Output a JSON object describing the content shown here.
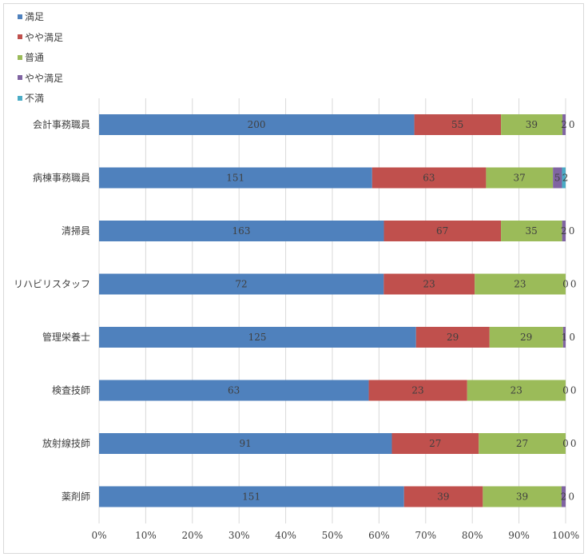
{
  "chart_data": {
    "type": "bar",
    "orientation": "horizontal",
    "stacked": "percent",
    "categories": [
      "会計事務職員",
      "病棟事務職員",
      "清掃員",
      "リハビリスタッフ",
      "管理栄養士",
      "検査技師",
      "放射線技師",
      "薬剤師"
    ],
    "series": [
      {
        "name": "満足",
        "color": "#4f81bd",
        "values": [
          200,
          151,
          163,
          72,
          125,
          63,
          91,
          151
        ]
      },
      {
        "name": "やや満足",
        "color": "#c0504d",
        "values": [
          55,
          63,
          67,
          23,
          29,
          23,
          27,
          39
        ]
      },
      {
        "name": "普通",
        "color": "#9bbb59",
        "values": [
          39,
          37,
          35,
          23,
          29,
          23,
          27,
          39
        ]
      },
      {
        "name": "やや満足",
        "color": "#8064a2",
        "values": [
          2,
          5,
          2,
          0,
          1,
          0,
          0,
          2
        ]
      },
      {
        "name": "不満",
        "color": "#4bacc6",
        "values": [
          0,
          2,
          0,
          0,
          0,
          0,
          0,
          0
        ]
      }
    ],
    "xticks": [
      "0%",
      "10%",
      "20%",
      "30%",
      "40%",
      "50%",
      "60%",
      "70%",
      "80%",
      "90%",
      "100%"
    ],
    "xlim": [
      0,
      100
    ],
    "grid": true,
    "legend": "top-left"
  }
}
